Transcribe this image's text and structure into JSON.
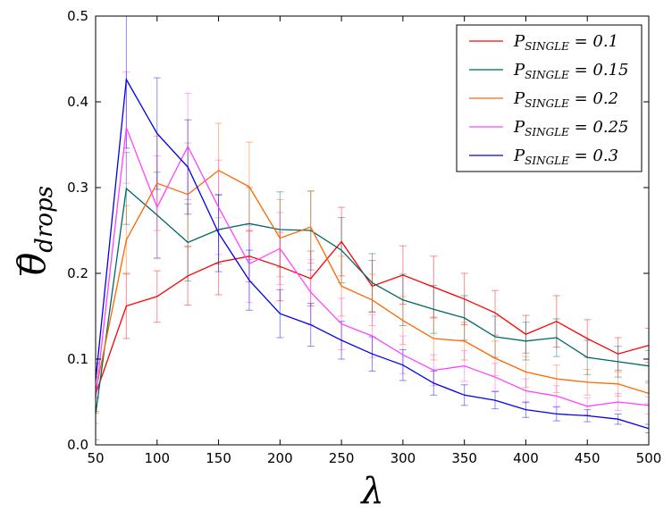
{
  "chart_data": {
    "type": "line",
    "xlabel": "λ",
    "ylabel_main": "θ",
    "ylabel_sub": "drops",
    "xlim": [
      50,
      500
    ],
    "ylim": [
      0,
      0.5
    ],
    "x_ticks": [
      "50",
      "100",
      "150",
      "200",
      "250",
      "300",
      "350",
      "400",
      "450",
      "500"
    ],
    "y_ticks": [
      "0.0",
      "0.1",
      "0.2",
      "0.3",
      "0.4",
      "0.5"
    ],
    "grid": false,
    "legend_position": "top-right",
    "x": [
      50,
      75,
      100,
      125,
      150,
      175,
      200,
      225,
      250,
      275,
      300,
      325,
      350,
      375,
      400,
      425,
      450,
      475,
      500
    ],
    "series": [
      {
        "name_main": "P",
        "name_sub": "SINGLE",
        "name_value": " = 0.1",
        "color": "#ff0000",
        "values": [
          0.059,
          0.162,
          0.173,
          0.197,
          0.213,
          0.22,
          0.208,
          0.194,
          0.237,
          0.185,
          0.198,
          0.184,
          0.17,
          0.154,
          0.129,
          0.144,
          0.124,
          0.106,
          0.116
        ],
        "errors": [
          0.02,
          0.038,
          0.03,
          0.034,
          0.038,
          0.03,
          0.04,
          0.032,
          0.04,
          0.03,
          0.034,
          0.036,
          0.03,
          0.026,
          0.022,
          0.03,
          0.022,
          0.019,
          0.02
        ]
      },
      {
        "name_main": "P",
        "name_sub": "SINGLE",
        "name_value": " = 0.15",
        "color": "#006666",
        "values": [
          0.036,
          0.299,
          0.268,
          0.236,
          0.251,
          0.258,
          0.251,
          0.25,
          0.227,
          0.189,
          0.169,
          0.158,
          0.148,
          0.126,
          0.121,
          0.125,
          0.102,
          0.097,
          0.092
        ],
        "errors": [
          0.03,
          0.042,
          0.05,
          0.045,
          0.04,
          0.042,
          0.044,
          0.046,
          0.038,
          0.034,
          0.03,
          0.028,
          0.026,
          0.024,
          0.022,
          0.022,
          0.02,
          0.018,
          0.018
        ]
      },
      {
        "name_main": "P",
        "name_sub": "SINGLE",
        "name_value": " = 0.2",
        "color": "#ff6600",
        "values": [
          0.062,
          0.239,
          0.305,
          0.292,
          0.32,
          0.301,
          0.241,
          0.254,
          0.185,
          0.169,
          0.145,
          0.124,
          0.121,
          0.101,
          0.085,
          0.077,
          0.073,
          0.071,
          0.06
        ],
        "errors": [
          0.025,
          0.04,
          0.055,
          0.06,
          0.055,
          0.052,
          0.045,
          0.042,
          0.035,
          0.03,
          0.028,
          0.025,
          0.022,
          0.02,
          0.018,
          0.016,
          0.015,
          0.014,
          0.012
        ]
      },
      {
        "name_main": "P",
        "name_sub": "SINGLE",
        "name_value": " = 0.25",
        "color": "#ff44ff",
        "values": [
          0.055,
          0.37,
          0.277,
          0.348,
          0.277,
          0.211,
          0.229,
          0.178,
          0.141,
          0.127,
          0.105,
          0.087,
          0.092,
          0.079,
          0.063,
          0.057,
          0.045,
          0.05,
          0.046
        ],
        "errors": [
          0.03,
          0.065,
          0.06,
          0.062,
          0.055,
          0.045,
          0.042,
          0.038,
          0.03,
          0.025,
          0.022,
          0.018,
          0.018,
          0.016,
          0.014,
          0.012,
          0.01,
          0.01,
          0.01
        ]
      },
      {
        "name_main": "P",
        "name_sub": "SINGLE",
        "name_value": " = 0.3",
        "color": "#0000ee",
        "values": [
          0.075,
          0.426,
          0.363,
          0.324,
          0.247,
          0.192,
          0.153,
          0.14,
          0.122,
          0.106,
          0.093,
          0.072,
          0.058,
          0.052,
          0.041,
          0.036,
          0.034,
          0.03,
          0.019
        ],
        "errors": [
          0.02,
          0.08,
          0.065,
          0.055,
          0.045,
          0.035,
          0.028,
          0.025,
          0.022,
          0.02,
          0.018,
          0.014,
          0.012,
          0.01,
          0.009,
          0.008,
          0.007,
          0.006,
          0.005
        ]
      }
    ]
  }
}
